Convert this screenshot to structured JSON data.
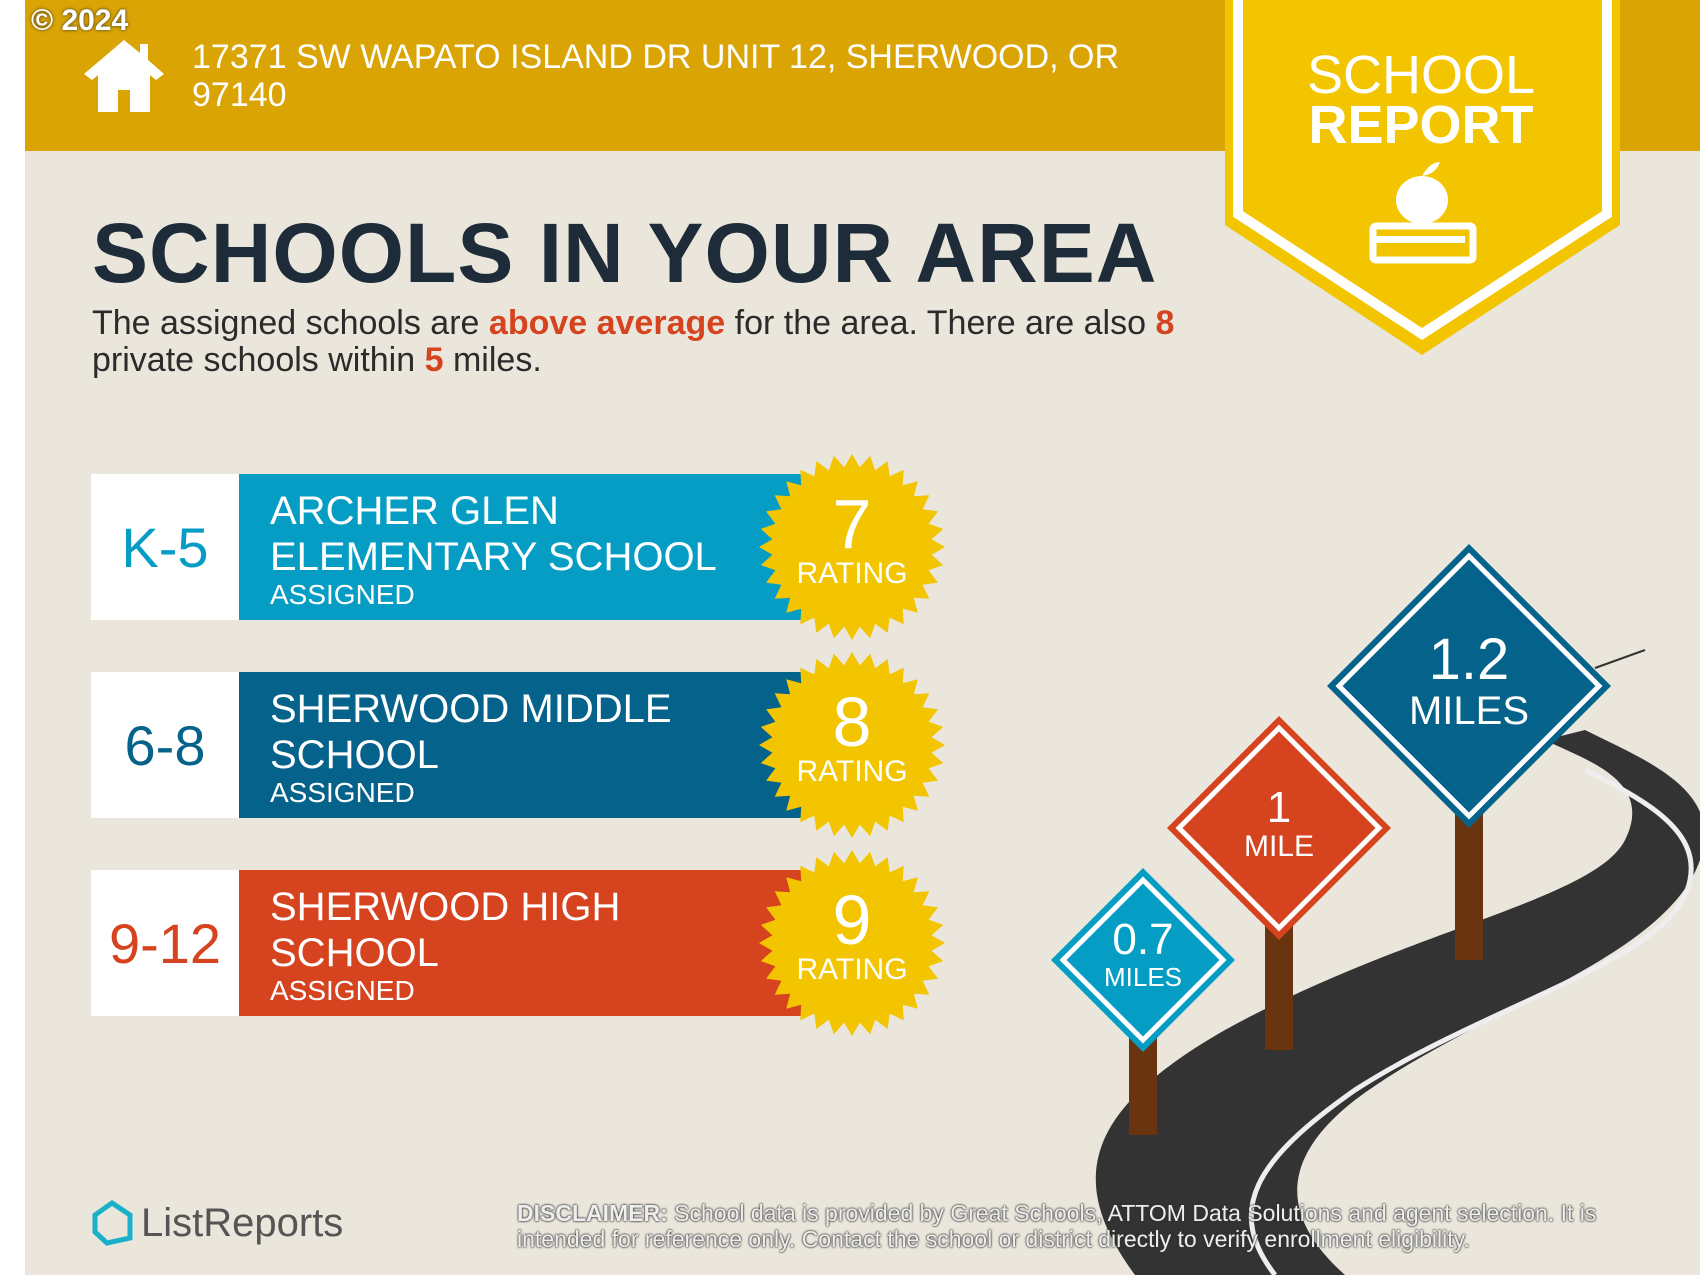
{
  "header": {
    "copyright": "© 2024",
    "address_line1": "17371 SW WAPATO ISLAND DR UNIT 12, SHERWOOD, OR",
    "address_line2": "97140"
  },
  "badge": {
    "line1": "SCHOOL",
    "line2": "REPORT",
    "icon": "apple-on-book-icon"
  },
  "title": "SCHOOLS IN YOUR AREA",
  "summary": {
    "p1": "The assigned schools are ",
    "highlight": "above average",
    "p2": " for the area. There are also ",
    "private_count": "8",
    "p3": " private schools within ",
    "miles": "5",
    "p4": " miles."
  },
  "schools": [
    {
      "grade": "K-5",
      "name": "ARCHER GLEN ELEMENTARY SCHOOL",
      "status": "ASSIGNED",
      "rating": "7",
      "rating_label": "RATING",
      "color": "#069DC4"
    },
    {
      "grade": "6-8",
      "name": "SHERWOOD MIDDLE SCHOOL",
      "status": "ASSIGNED",
      "rating": "8",
      "rating_label": "RATING",
      "color": "#05628A"
    },
    {
      "grade": "9-12",
      "name": "SHERWOOD HIGH SCHOOL",
      "status": "ASSIGNED",
      "rating": "9",
      "rating_label": "RATING",
      "color": "#D5431F"
    }
  ],
  "signs": [
    {
      "value": "0.7",
      "unit": "MILES",
      "color": "#069DC4"
    },
    {
      "value": "1",
      "unit": "MILE",
      "color": "#D5431F"
    },
    {
      "value": "1.2",
      "unit": "MILES",
      "color": "#05628A"
    }
  ],
  "logo": {
    "text": "ListReports"
  },
  "disclaimer": {
    "label": "DISCLAIMER:",
    "text": " School data is provided by Great Schools, ATTOM Data Solutions and agent selection. It is intended for reference only. Contact the school or district directly to verify enrollment eligibility."
  },
  "colors": {
    "header": "#D9A404",
    "badge": "#F2C500",
    "background": "#EAE6DC",
    "title": "#1E2B39",
    "accent": "#D5431F"
  }
}
